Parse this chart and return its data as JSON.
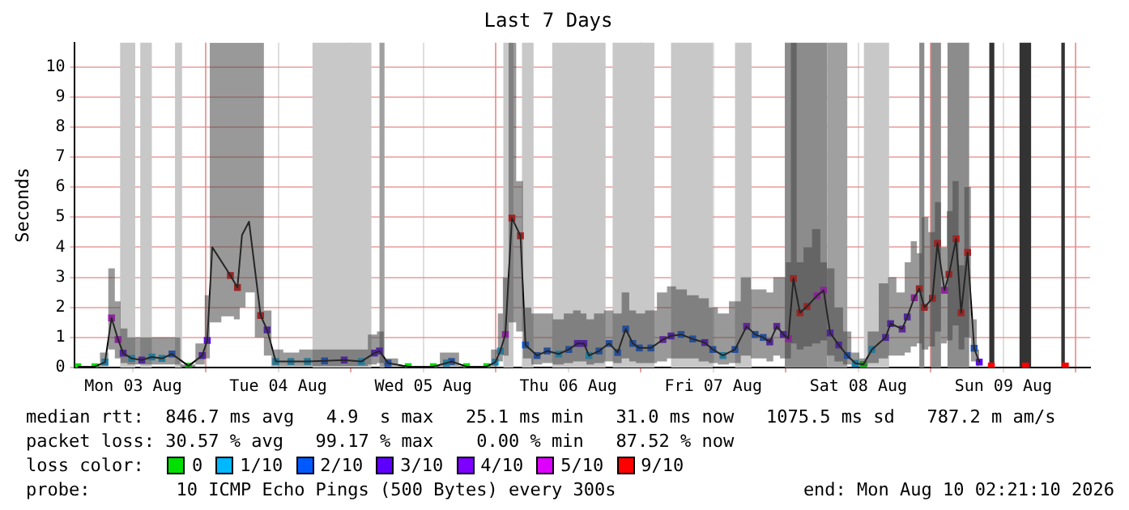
{
  "chart_data": {
    "type": "line",
    "title": "Last 7 Days",
    "ylabel": "Seconds",
    "legend_title": "loss color:",
    "legend": "bottom",
    "grid": true,
    "marker": "square",
    "line_style": "solid",
    "xlim": [
      "2026-08-03T02:21",
      "2026-08-10T02:21"
    ],
    "xticks": [
      {
        "value": "2026-08-03T12:00",
        "label": "Mon 03 Aug"
      },
      {
        "value": "2026-08-04T00:00",
        "label": null
      },
      {
        "value": "2026-08-04T12:00",
        "label": "Tue 04 Aug"
      },
      {
        "value": "2026-08-05T00:00",
        "label": null
      },
      {
        "value": "2026-08-05T12:00",
        "label": "Wed 05 Aug"
      },
      {
        "value": "2026-08-06T00:00",
        "label": null
      },
      {
        "value": "2026-08-06T12:00",
        "label": "Thu 06 Aug"
      },
      {
        "value": "2026-08-07T00:00",
        "label": null
      },
      {
        "value": "2026-08-07T12:00",
        "label": "Fri 07 Aug"
      },
      {
        "value": "2026-08-08T00:00",
        "label": null
      },
      {
        "value": "2026-08-08T12:00",
        "label": "Sat 08 Aug"
      },
      {
        "value": "2026-08-09T00:00",
        "label": null
      },
      {
        "value": "2026-08-09T12:00",
        "label": "Sun 09 Aug"
      },
      {
        "value": "2026-08-10T00:00",
        "label": null
      }
    ],
    "ylim": [
      0,
      10.8
    ],
    "yticks": [
      0,
      1,
      2,
      3,
      4,
      5,
      6,
      7,
      8,
      9,
      10
    ],
    "bands": [
      {
        "axis": "x",
        "from": "2026-08-03T09:50",
        "to": "2026-08-03T12:20",
        "color": "#c8c8c8"
      },
      {
        "axis": "x",
        "from": "2026-08-03T13:10",
        "to": "2026-08-03T15:05",
        "color": "#c8c8c8"
      },
      {
        "axis": "x",
        "from": "2026-08-03T18:55",
        "to": "2026-08-03T20:05",
        "color": "#c8c8c8"
      },
      {
        "axis": "x",
        "from": "2026-08-04T17:40",
        "to": "2026-08-05T03:25",
        "color": "#c8c8c8"
      },
      {
        "axis": "x",
        "from": "2026-08-05T04:45",
        "to": "2026-08-05T05:35",
        "color": "#a0a0a0"
      },
      {
        "axis": "x",
        "from": "2026-08-06T01:15",
        "to": "2026-08-06T02:55",
        "color": "#c8c8c8"
      },
      {
        "axis": "x",
        "from": "2026-08-06T04:20",
        "to": "2026-08-06T06:15",
        "color": "#c8c8c8"
      },
      {
        "axis": "x",
        "from": "2026-08-06T09:20",
        "to": "2026-08-06T18:10",
        "color": "#c8c8c8"
      },
      {
        "axis": "x",
        "from": "2026-08-06T19:20",
        "to": "2026-08-07T02:15",
        "color": "#c8c8c8"
      },
      {
        "axis": "x",
        "from": "2026-08-07T05:00",
        "to": "2026-08-07T11:55",
        "color": "#c8c8c8"
      },
      {
        "axis": "x",
        "from": "2026-08-07T15:35",
        "to": "2026-08-07T18:20",
        "color": "#c8c8c8"
      },
      {
        "axis": "x",
        "from": "2026-08-07T23:50",
        "to": "2026-08-08T06:50",
        "color": "#8c8c8c"
      },
      {
        "axis": "x",
        "from": "2026-08-08T06:50",
        "to": "2026-08-08T10:10",
        "color": "#a0a0a0"
      },
      {
        "axis": "x",
        "from": "2026-08-08T12:55",
        "to": "2026-08-08T17:05",
        "color": "#c8c8c8"
      },
      {
        "axis": "x",
        "from": "2026-08-08T22:05",
        "to": "2026-08-08T22:55",
        "color": "#8c8c8c"
      },
      {
        "axis": "x",
        "from": "2026-08-09T00:00",
        "to": "2026-08-09T01:40",
        "color": "#8c8c8c"
      },
      {
        "axis": "x",
        "from": "2026-08-09T02:45",
        "to": "2026-08-09T06:20",
        "color": "#8c8c8c"
      },
      {
        "axis": "x",
        "from": "2026-08-09T09:40",
        "to": "2026-08-09T10:30",
        "color": "#333333"
      },
      {
        "axis": "x",
        "from": "2026-08-09T14:40",
        "to": "2026-08-09T16:35",
        "color": "#333333"
      },
      {
        "axis": "x",
        "from": "2026-08-09T21:35",
        "to": "2026-08-09T22:10",
        "color": "#333333"
      }
    ],
    "annotations": [
      "median rtt:  846.7 ms avg   4.9  s max   25.1 ms min   31.0 ms now   1075.5 ms sd   787.2 m am/s",
      "packet loss: 30.57 % avg   99.17 % max    0.00 % min   87.52 % now",
      "probe:        10 ICMP Echo Pings (500 Bytes) every 300s",
      "end: Mon Aug 10 02:21:10 2026"
    ],
    "series": [
      {
        "color": "#000000",
        "marker": "none",
        "x": [
          "2026-08-03T02:50",
          "2026-08-03T05:40",
          "2026-08-03T07:20",
          "2026-08-03T08:25",
          "2026-08-03T09:30",
          "2026-08-03T10:20",
          "2026-08-03T11:45",
          "2026-08-03T13:25",
          "2026-08-03T15:05",
          "2026-08-03T16:45",
          "2026-08-03T18:25",
          "2026-08-03T21:10",
          "2026-08-03T23:25",
          "2026-08-04T00:15",
          "2026-08-04T01:05",
          "2026-08-04T04:05",
          "2026-08-04T05:15",
          "2026-08-04T06:00",
          "2026-08-04T07:10",
          "2026-08-04T09:05",
          "2026-08-04T10:10",
          "2026-08-04T11:35",
          "2026-08-04T14:05",
          "2026-08-04T16:50",
          "2026-08-04T19:40",
          "2026-08-04T22:55",
          "2026-08-05T01:45",
          "2026-08-05T03:55",
          "2026-08-05T04:45",
          "2026-08-05T06:10",
          "2026-08-05T09:30",
          "2026-08-05T13:40",
          "2026-08-05T15:50",
          "2026-08-05T16:40",
          "2026-08-05T19:10",
          "2026-08-05T22:30",
          "2026-08-05T23:55",
          "2026-08-06T00:45",
          "2026-08-06T01:35",
          "2026-08-06T02:40",
          "2026-08-06T04:05",
          "2026-08-06T04:55",
          "2026-08-06T06:50",
          "2026-08-06T08:30",
          "2026-08-06T10:25",
          "2026-08-06T12:05",
          "2026-08-06T13:30",
          "2026-08-06T14:35",
          "2026-08-06T15:25",
          "2026-08-06T17:05",
          "2026-08-06T18:45",
          "2026-08-06T20:10",
          "2026-08-06T21:30",
          "2026-08-06T22:40",
          "2026-08-06T23:45",
          "2026-08-07T01:40",
          "2026-08-07T03:40",
          "2026-08-07T05:00",
          "2026-08-07T06:40",
          "2026-08-07T08:35",
          "2026-08-07T10:35",
          "2026-08-07T11:55",
          "2026-08-07T13:35",
          "2026-08-07T15:35",
          "2026-08-07T17:30",
          "2026-08-07T18:55",
          "2026-08-07T20:15",
          "2026-08-07T21:20",
          "2026-08-07T22:30",
          "2026-08-07T23:35",
          "2026-08-08T00:25",
          "2026-08-08T01:15",
          "2026-08-08T02:20",
          "2026-08-08T03:30",
          "2026-08-08T05:10",
          "2026-08-08T06:15",
          "2026-08-08T07:20",
          "2026-08-08T08:45",
          "2026-08-08T10:10",
          "2026-08-08T11:30",
          "2026-08-08T12:50",
          "2026-08-08T14:15",
          "2026-08-08T16:30",
          "2026-08-08T17:20",
          "2026-08-08T19:15",
          "2026-08-08T20:05",
          "2026-08-08T21:15",
          "2026-08-08T22:05",
          "2026-08-08T22:55",
          "2026-08-09T00:15",
          "2026-08-09T01:05",
          "2026-08-09T02:15",
          "2026-08-09T03:00",
          "2026-08-09T04:10",
          "2026-08-09T05:00",
          "2026-08-09T06:05",
          "2026-08-09T07:10",
          "2026-08-09T08:00"
        ],
        "values": [
          0.03,
          0.03,
          0.18,
          1.65,
          0.93,
          0.48,
          0.3,
          0.25,
          0.35,
          0.3,
          0.45,
          0.05,
          0.4,
          0.9,
          4.0,
          3.06,
          2.66,
          4.4,
          4.85,
          1.73,
          1.25,
          0.2,
          0.2,
          0.2,
          0.22,
          0.25,
          0.2,
          0.48,
          0.55,
          0.15,
          0.03,
          0.03,
          0.15,
          0.2,
          0.03,
          0.03,
          0.18,
          0.55,
          1.1,
          4.97,
          4.38,
          0.75,
          0.4,
          0.55,
          0.45,
          0.6,
          0.8,
          0.8,
          0.4,
          0.55,
          0.8,
          0.5,
          1.28,
          0.8,
          0.65,
          0.65,
          0.93,
          1.05,
          1.1,
          0.95,
          0.83,
          0.6,
          0.4,
          0.6,
          1.37,
          1.1,
          1.0,
          0.85,
          1.37,
          1.1,
          0.96,
          2.96,
          1.82,
          2.03,
          2.39,
          2.57,
          1.15,
          0.75,
          0.4,
          0.14,
          0.1,
          0.6,
          1.0,
          1.46,
          1.28,
          1.68,
          2.32,
          2.62,
          2.0,
          2.3,
          4.13,
          2.57,
          3.1,
          4.28,
          1.82,
          3.83,
          0.64,
          0.18
        ],
        "lower": [
          0.02,
          0.02,
          0.05,
          0.6,
          0.3,
          0.15,
          0.1,
          0.1,
          0.1,
          0.1,
          0.1,
          0.02,
          0.1,
          0.3,
          1.5,
          1.7,
          1.6,
          2.0,
          2.5,
          1.0,
          0.4,
          0.05,
          0.05,
          0.05,
          0.05,
          0.05,
          0.05,
          0.1,
          0.15,
          0.05,
          0.02,
          0.02,
          0.05,
          0.05,
          0.02,
          0.02,
          0.05,
          0.2,
          0.4,
          1.5,
          1.2,
          0.3,
          0.1,
          0.15,
          0.1,
          0.15,
          0.2,
          0.2,
          0.1,
          0.15,
          0.2,
          0.15,
          0.3,
          0.2,
          0.15,
          0.15,
          0.2,
          0.3,
          0.3,
          0.3,
          0.2,
          0.15,
          0.1,
          0.15,
          0.4,
          0.3,
          0.3,
          0.2,
          0.4,
          0.3,
          0.3,
          0.8,
          0.6,
          0.7,
          0.8,
          0.9,
          0.4,
          0.2,
          0.1,
          0.05,
          0.03,
          0.15,
          0.3,
          0.4,
          0.4,
          0.5,
          0.7,
          0.8,
          0.6,
          0.7,
          1.2,
          0.8,
          0.9,
          1.4,
          0.6,
          1.0,
          0.2,
          0.05
        ],
        "upper": [
          0.05,
          0.05,
          0.5,
          3.3,
          2.2,
          1.3,
          1.0,
          1.0,
          1.0,
          1.0,
          1.0,
          0.1,
          0.8,
          2.4,
          10.8,
          10.8,
          10.8,
          10.8,
          10.8,
          10.8,
          1.9,
          0.6,
          0.5,
          0.6,
          0.6,
          0.6,
          0.6,
          1.1,
          1.2,
          0.3,
          0.05,
          0.05,
          0.5,
          0.5,
          0.05,
          0.05,
          0.6,
          1.8,
          3.0,
          10.8,
          6.2,
          2.0,
          1.8,
          1.8,
          1.6,
          1.8,
          1.9,
          1.8,
          1.6,
          1.8,
          1.9,
          1.8,
          2.5,
          1.9,
          1.8,
          1.9,
          2.5,
          2.7,
          2.6,
          2.4,
          2.3,
          2.0,
          1.8,
          2.2,
          3.0,
          2.6,
          2.6,
          2.5,
          3.0,
          3.0,
          3.5,
          10.8,
          3.5,
          4.0,
          4.6,
          3.5,
          3.3,
          2.0,
          1.2,
          0.5,
          0.3,
          1.2,
          2.8,
          3.0,
          2.5,
          3.5,
          4.2,
          3.8,
          5.0,
          4.5,
          5.5,
          4.0,
          5.2,
          6.2,
          3.4,
          6.0,
          1.6,
          0.6
        ]
      },
      {
        "type": "scatter",
        "name": "0",
        "color": "#00e000",
        "x": [
          "2026-08-03T02:50",
          "2026-08-03T05:40",
          "2026-08-03T21:10",
          "2026-08-05T09:30",
          "2026-08-05T13:40",
          "2026-08-05T19:10",
          "2026-08-05T22:30",
          "2026-08-08T12:50"
        ],
        "values": [
          0.03,
          0.03,
          0.05,
          0.03,
          0.03,
          0.03,
          0.03,
          0.1
        ]
      },
      {
        "type": "scatter",
        "name": "1/10",
        "color": "#00b8ff",
        "x": [
          "2026-08-03T07:20",
          "2026-08-03T11:45",
          "2026-08-03T15:05",
          "2026-08-03T16:45",
          "2026-08-04T11:35",
          "2026-08-04T14:05",
          "2026-08-04T16:50",
          "2026-08-05T01:45",
          "2026-08-05T15:50",
          "2026-08-05T23:55",
          "2026-08-06T00:45",
          "2026-08-06T10:25",
          "2026-08-06T15:25",
          "2026-08-07T13:35",
          "2026-08-08T11:30",
          "2026-08-08T14:15"
        ],
        "values": [
          0.18,
          0.3,
          0.35,
          0.3,
          0.2,
          0.2,
          0.2,
          0.2,
          0.15,
          0.18,
          0.55,
          0.45,
          0.4,
          0.4,
          0.14,
          0.6
        ]
      },
      {
        "type": "scatter",
        "name": "2/10",
        "color": "#0059ff",
        "x": [
          "2026-08-03T18:25",
          "2026-08-04T19:40",
          "2026-08-05T06:10",
          "2026-08-05T16:40",
          "2026-08-06T04:55",
          "2026-08-06T06:50",
          "2026-08-06T08:30",
          "2026-08-06T12:05",
          "2026-08-06T17:05",
          "2026-08-06T18:45",
          "2026-08-06T20:10",
          "2026-08-06T21:30",
          "2026-08-06T22:40",
          "2026-08-06T23:45",
          "2026-08-07T01:40",
          "2026-08-07T06:40",
          "2026-08-07T08:35",
          "2026-08-07T11:55",
          "2026-08-07T15:35",
          "2026-08-07T18:55",
          "2026-08-07T20:15",
          "2026-08-08T10:10",
          "2026-08-09T07:10"
        ],
        "values": [
          0.45,
          0.22,
          0.15,
          0.2,
          0.75,
          0.4,
          0.55,
          0.6,
          0.55,
          0.8,
          0.5,
          1.28,
          0.8,
          0.65,
          0.65,
          1.1,
          0.95,
          0.6,
          0.6,
          1.1,
          1.0,
          0.4,
          0.64
        ]
      },
      {
        "type": "scatter",
        "name": "3/10",
        "color": "#5e00ff",
        "x": [
          "2026-08-03T10:20",
          "2026-08-03T13:25",
          "2026-08-03T23:25",
          "2026-08-04T00:15",
          "2026-08-04T10:10",
          "2026-08-04T22:55",
          "2026-08-05T03:55",
          "2026-08-05T04:45",
          "2026-08-06T13:30",
          "2026-08-06T14:35",
          "2026-08-07T05:00",
          "2026-08-07T10:35",
          "2026-08-07T21:20",
          "2026-08-07T23:35",
          "2026-08-08T07:20",
          "2026-08-08T08:45",
          "2026-08-08T16:30",
          "2026-08-08T17:20",
          "2026-08-08T20:05",
          "2026-08-09T08:00"
        ],
        "values": [
          0.48,
          0.25,
          0.4,
          0.9,
          1.25,
          0.25,
          0.48,
          0.55,
          0.8,
          0.8,
          1.05,
          0.83,
          0.85,
          1.1,
          1.15,
          0.75,
          1.0,
          1.46,
          1.68,
          0.18
        ]
      },
      {
        "type": "scatter",
        "name": "4/10",
        "color": "#7e00ff",
        "x": [
          "2026-08-07T03:40",
          "2026-08-07T17:30",
          "2026-08-07T22:30",
          "2026-08-08T19:15"
        ],
        "values": [
          0.93,
          1.37,
          1.37,
          1.28
        ]
      },
      {
        "type": "scatter",
        "name": "5/10",
        "color": "#dd00ff",
        "x": [
          "2026-08-03T08:25",
          "2026-08-03T09:30",
          "2026-08-06T01:35",
          "2026-08-08T00:25",
          "2026-08-08T05:10",
          "2026-08-08T06:15",
          "2026-08-08T21:15",
          "2026-08-09T02:15"
        ],
        "values": [
          1.65,
          0.93,
          1.1,
          0.96,
          2.39,
          2.57,
          2.32,
          2.57
        ]
      },
      {
        "type": "scatter",
        "name": "9/10",
        "color": "#ff0000",
        "x": [
          "2026-08-04T04:05",
          "2026-08-04T05:15",
          "2026-08-04T09:05",
          "2026-08-06T02:40",
          "2026-08-06T04:05",
          "2026-08-08T01:15",
          "2026-08-08T02:20",
          "2026-08-08T03:30",
          "2026-08-08T22:05",
          "2026-08-08T22:55",
          "2026-08-09T00:15",
          "2026-08-09T01:05",
          "2026-08-09T03:00",
          "2026-08-09T04:10",
          "2026-08-09T05:00",
          "2026-08-09T06:05",
          "2026-08-09T10:00",
          "2026-08-09T15:40",
          "2026-08-09T22:15"
        ],
        "values": [
          3.06,
          2.66,
          1.73,
          4.97,
          4.38,
          2.96,
          1.82,
          2.03,
          2.62,
          2.0,
          2.3,
          4.13,
          3.1,
          4.28,
          1.82,
          3.83,
          0.05,
          0.05,
          0.05
        ]
      }
    ]
  }
}
